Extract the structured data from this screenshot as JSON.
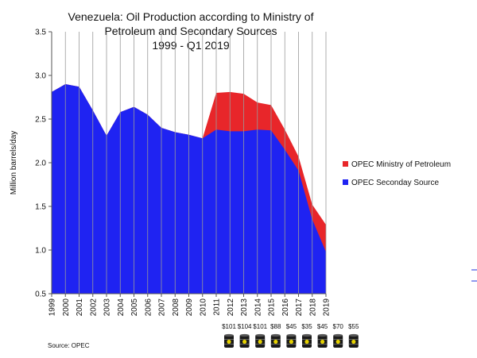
{
  "chart_data": {
    "type": "area",
    "title_lines": [
      "Venezuela: Oil Production according to Ministry of",
      "Petroleum and Secondary Sources",
      "1999 - Q1 2019"
    ],
    "ylabel": "Million barrels/day",
    "xlabel": "",
    "ylim": [
      0.5,
      3.5
    ],
    "yticks": [
      "0.5",
      "1.0",
      "1.5",
      "2.0",
      "2.5",
      "3.0",
      "3.5"
    ],
    "ytick_values": [
      0.5,
      1.0,
      1.5,
      2.0,
      2.5,
      3.0,
      3.5
    ],
    "x": [
      "1999",
      "2000",
      "2001",
      "2002",
      "2003",
      "2004",
      "2005",
      "2006",
      "2007",
      "2008",
      "2009",
      "2010",
      "2011",
      "2012",
      "2013",
      "2014",
      "2015",
      "2016",
      "2017",
      "2018",
      "2019"
    ],
    "grid": "vertical",
    "legend_position": "right",
    "series": [
      {
        "name": "OPEC Ministry of Petroleum",
        "color": "#e8262a",
        "values": [
          2.81,
          2.9,
          2.87,
          2.6,
          2.31,
          2.58,
          2.64,
          2.55,
          2.4,
          2.35,
          2.32,
          2.28,
          2.8,
          2.81,
          2.79,
          2.69,
          2.66,
          2.38,
          2.07,
          1.52,
          1.29
        ]
      },
      {
        "name": "OPEC Seconday Source",
        "color": "#1f23f2",
        "values": [
          2.81,
          2.9,
          2.87,
          2.6,
          2.31,
          2.58,
          2.64,
          2.55,
          2.4,
          2.35,
          2.32,
          2.28,
          2.38,
          2.36,
          2.36,
          2.38,
          2.37,
          2.15,
          1.91,
          1.35,
          0.98
        ]
      }
    ],
    "oil_prices": [
      "$101",
      "$104",
      "$101",
      "$88",
      "$45",
      "$35",
      "$45",
      "$70",
      "$55"
    ],
    "source": "Source: OPEC"
  }
}
